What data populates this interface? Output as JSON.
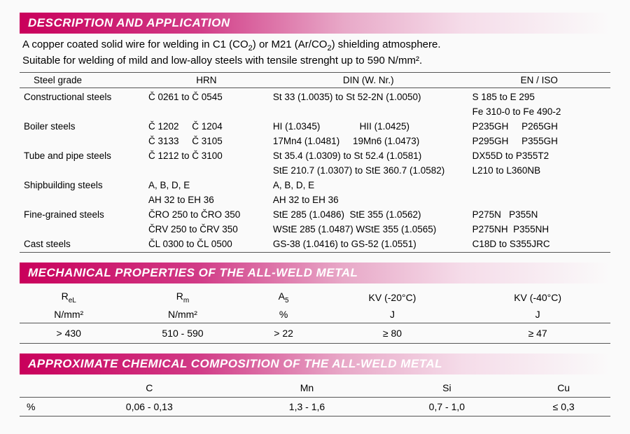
{
  "section1": {
    "title": "DESCRIPTION AND APPLICATION",
    "desc_line1_pre": "A copper coated solid wire for welding in C1 (CO",
    "desc_line1_mid": ") or M21 (Ar/CO",
    "desc_line1_post": ") shielding atmosphere.",
    "desc_line2": "Suitable for welding of mild and low-alloy steels with tensile strenght up to 590 N/mm².",
    "headers": {
      "sg": "Steel grade",
      "hrn": "HRN",
      "din": "DIN (W. Nr.)",
      "en": "EN / ISO"
    },
    "rows": [
      {
        "sg": "Constructional steels",
        "hrn": "Č 0261 to Č 0545",
        "din": "St 33 (1.0035) to St 52-2N (1.0050)",
        "en": "S 185 to E 295"
      },
      {
        "sg": "",
        "hrn": "",
        "din": "",
        "en": "Fe 310-0 to Fe 490-2"
      },
      {
        "sg": "Boiler steels",
        "hrn": "Č 1202     Č 1204",
        "din": "HI (1.0345)               HII (1.0425)",
        "en": "P235GH     P265GH"
      },
      {
        "sg": "",
        "hrn": "Č 3133     Č 3105",
        "din": "17Mn4 (1.0481)     19Mn6 (1.0473)",
        "en": "P295GH     P355GH"
      },
      {
        "sg": "Tube and pipe steels",
        "hrn": "Č 1212 to Č 3100",
        "din": "St 35.4 (1.0309) to St 52.4 (1.0581)",
        "en": "DX55D to P355T2"
      },
      {
        "sg": "",
        "hrn": "",
        "din": "StE 210.7 (1.0307) to StE 360.7 (1.0582)",
        "en": "L210 to L360NB"
      },
      {
        "sg": "Shipbuilding steels",
        "hrn": "A, B, D, E",
        "din": "A, B, D, E",
        "en": ""
      },
      {
        "sg": "",
        "hrn": "AH 32 to EH 36",
        "din": "AH 32 to EH 36",
        "en": ""
      },
      {
        "sg": "Fine-grained steels",
        "hrn": "ČRO 250 to ČRO 350",
        "din": "StE 285 (1.0486)  StE 355 (1.0562)",
        "en": "P275N   P355N"
      },
      {
        "sg": "",
        "hrn": "ČRV 250 to ČRV 350",
        "din": "WStE 285 (1.0487) WStE 355 (1.0565)",
        "en": "P275NH  P355NH"
      },
      {
        "sg": "Cast steels",
        "hrn": "ČL 0300 to ČL 0500",
        "din": "GS-38 (1.0416) to GS-52 (1.0551)",
        "en": "C18D to S355JRC"
      }
    ]
  },
  "section2": {
    "title": "MECHANICAL PROPERTIES OF THE ALL-WELD METAL",
    "cols": [
      {
        "h1_pre": "R",
        "h1_sub": "eL",
        "h2": "N/mm²",
        "val": "> 430"
      },
      {
        "h1_pre": "R",
        "h1_sub": "m",
        "h2": "N/mm²",
        "val": "510 - 590"
      },
      {
        "h1_pre": "A",
        "h1_sub": "5",
        "h2": "%",
        "val": "> 22"
      },
      {
        "h1": "KV (-20°C)",
        "h2": "J",
        "val": "≥ 80"
      },
      {
        "h1": "KV (-40°C)",
        "h2": "J",
        "val": "≥ 47"
      }
    ]
  },
  "section3": {
    "title": "APPROXIMATE CHEMICAL COMPOSITION OF THE ALL-WELD METAL",
    "row_label": "%",
    "cols": [
      {
        "h": "C",
        "v": "0,06 - 0,13"
      },
      {
        "h": "Mn",
        "v": "1,3 - 1,6"
      },
      {
        "h": "Si",
        "v": "0,7 - 1,0"
      },
      {
        "h": "Cu",
        "v": "≤ 0,3"
      }
    ]
  },
  "colors": {
    "accent": "#c9005b",
    "border": "#555555",
    "bg": "#fafafa"
  }
}
